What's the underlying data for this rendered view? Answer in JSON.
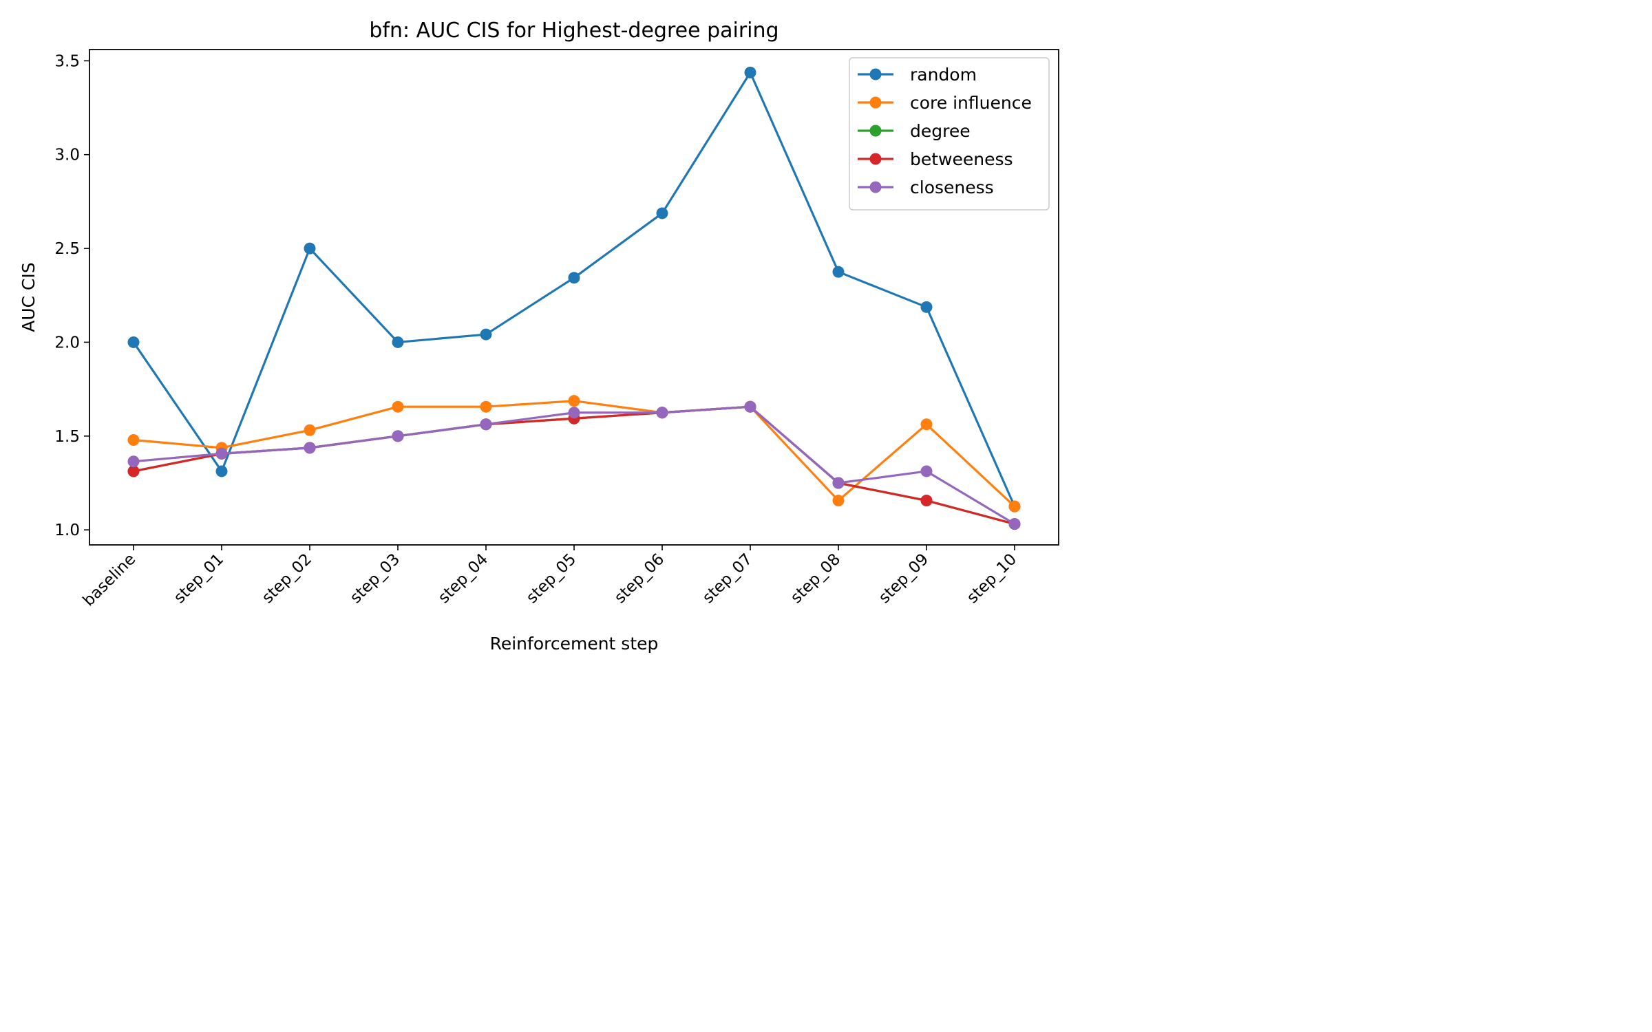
{
  "chart_data": {
    "type": "line",
    "title": "bfn: AUC CIS for Highest-degree pairing",
    "xlabel": "Reinforcement step",
    "ylabel": "AUC CIS",
    "categories": [
      "baseline",
      "step_01",
      "step_02",
      "step_03",
      "step_04",
      "step_05",
      "step_06",
      "step_07",
      "step_08",
      "step_09",
      "step_10"
    ],
    "ylim": [
      0.92,
      3.56
    ],
    "yticks": [
      "1.0",
      "1.5",
      "2.0",
      "2.5",
      "3.0",
      "3.5"
    ],
    "grid": false,
    "legend_position": "top-right",
    "series": [
      {
        "name": "random",
        "color": "#1f77b4",
        "values": [
          2.0,
          1.3125,
          2.5,
          2.0,
          2.0417,
          2.3438,
          2.6875,
          3.4375,
          2.375,
          2.1875,
          1.125
        ]
      },
      {
        "name": "core influence",
        "color": "#ff7f0e",
        "values": [
          1.4792,
          1.4375,
          1.5313,
          1.6563,
          1.6563,
          1.6875,
          1.625,
          1.6563,
          1.1563,
          1.5625,
          1.125
        ]
      },
      {
        "name": "degree",
        "color": "#2ca02c",
        "values": [
          1.3125,
          1.4063,
          1.4375,
          1.5,
          1.5625,
          1.5938,
          1.625,
          1.6563,
          1.25,
          1.1563,
          1.0313
        ]
      },
      {
        "name": "betweeness",
        "color": "#d62728",
        "values": [
          1.3125,
          1.4063,
          1.4375,
          1.5,
          1.5625,
          1.5938,
          1.625,
          1.6563,
          1.25,
          1.1563,
          1.0313
        ]
      },
      {
        "name": "closeness",
        "color": "#9467bd",
        "values": [
          1.3646,
          1.4063,
          1.4375,
          1.5,
          1.5625,
          1.625,
          1.625,
          1.6563,
          1.25,
          1.3125,
          1.0313
        ]
      }
    ]
  }
}
